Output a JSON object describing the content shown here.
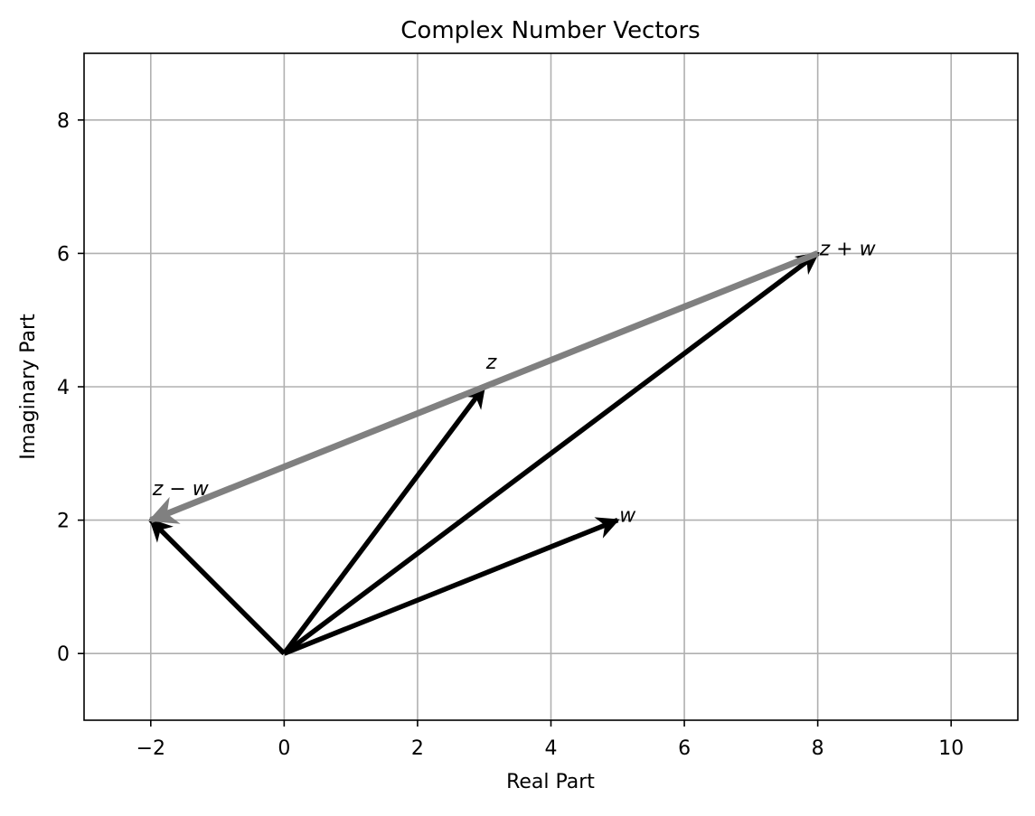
{
  "chart_data": {
    "type": "vector",
    "title": "Complex Number Vectors",
    "xlabel": "Real Part",
    "ylabel": "Imaginary Part",
    "xlim": [
      -3,
      11
    ],
    "ylim": [
      -1,
      9
    ],
    "xticks": [
      -2,
      0,
      2,
      4,
      6,
      8,
      10
    ],
    "xtick_labels": [
      "−2",
      "0",
      "2",
      "4",
      "6",
      "8",
      "10"
    ],
    "yticks": [
      0,
      2,
      4,
      6,
      8
    ],
    "ytick_labels": [
      "0",
      "2",
      "4",
      "6",
      "8"
    ],
    "grid": true,
    "vectors": [
      {
        "from": [
          0,
          0
        ],
        "to": [
          3,
          4
        ],
        "color": "#000000"
      },
      {
        "from": [
          0,
          0
        ],
        "to": [
          5,
          2
        ],
        "color": "#000000"
      },
      {
        "from": [
          0,
          0
        ],
        "to": [
          8,
          6
        ],
        "color": "#000000"
      },
      {
        "from": [
          0,
          0
        ],
        "to": [
          -2,
          2
        ],
        "color": "#000000"
      },
      {
        "from": [
          8,
          6
        ],
        "to": [
          -2,
          2
        ],
        "color": "#808080"
      }
    ],
    "annotations": [
      {
        "text": "z",
        "x": 3,
        "y": 4.3
      },
      {
        "text": "w",
        "x": 5,
        "y": 2
      },
      {
        "text": "z + w",
        "x": 8,
        "y": 6
      },
      {
        "text": "z − w",
        "x": -2,
        "y": 2.4
      }
    ]
  }
}
